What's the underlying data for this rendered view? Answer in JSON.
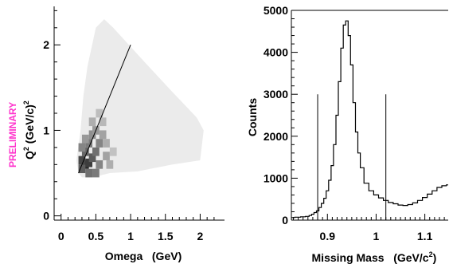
{
  "annotation": {
    "text": "PRELIMINARY",
    "color": "#ff33cc"
  },
  "chart_data": [
    {
      "type": "heatmap",
      "xlabel": "Omega   (GeV)",
      "ylabel": "Q",
      "ylabel_sup": "2",
      "ylabel_unit": "(GeV/c)",
      "ylabel_unit_sup": "2",
      "xlim": [
        -0.1,
        2.35
      ],
      "ylim": [
        -0.05,
        2.45
      ],
      "xticks": [
        0,
        0.5,
        1,
        1.5,
        2
      ],
      "xtick_labels": [
        "0",
        "0.5",
        "1",
        "1.5",
        "2"
      ],
      "yticks": [
        0,
        1,
        2
      ],
      "ytick_labels": [
        "0",
        "1",
        "2"
      ],
      "region_polygon": [
        [
          0.25,
          0.5
        ],
        [
          0.22,
          0.65
        ],
        [
          0.28,
          1.0
        ],
        [
          0.32,
          1.4
        ],
        [
          0.38,
          1.75
        ],
        [
          0.5,
          2.2
        ],
        [
          0.62,
          2.3
        ],
        [
          0.75,
          2.2
        ],
        [
          1.2,
          1.8
        ],
        [
          1.6,
          1.45
        ],
        [
          1.95,
          1.15
        ],
        [
          2.05,
          1.0
        ],
        [
          2.0,
          0.65
        ],
        [
          1.6,
          0.6
        ],
        [
          1.1,
          0.52
        ],
        [
          0.7,
          0.5
        ],
        [
          0.45,
          0.45
        ],
        [
          0.3,
          0.45
        ]
      ],
      "dense_cells": [
        {
          "x": 0.35,
          "y": 0.6,
          "v": 0.95
        },
        {
          "x": 0.4,
          "y": 0.62,
          "v": 0.85
        },
        {
          "x": 0.3,
          "y": 0.65,
          "v": 0.8
        },
        {
          "x": 0.45,
          "y": 0.68,
          "v": 0.7
        },
        {
          "x": 0.35,
          "y": 0.75,
          "v": 0.65
        },
        {
          "x": 0.5,
          "y": 0.75,
          "v": 0.6
        },
        {
          "x": 0.4,
          "y": 0.85,
          "v": 0.55
        },
        {
          "x": 0.55,
          "y": 0.85,
          "v": 0.5
        },
        {
          "x": 0.45,
          "y": 0.95,
          "v": 0.45
        },
        {
          "x": 0.5,
          "y": 1.0,
          "v": 0.4
        },
        {
          "x": 0.6,
          "y": 0.95,
          "v": 0.35
        },
        {
          "x": 0.3,
          "y": 0.55,
          "v": 0.7
        },
        {
          "x": 0.55,
          "y": 0.6,
          "v": 0.5
        },
        {
          "x": 0.65,
          "y": 0.7,
          "v": 0.35
        },
        {
          "x": 0.6,
          "y": 1.1,
          "v": 0.25
        },
        {
          "x": 0.7,
          "y": 0.6,
          "v": 0.3
        },
        {
          "x": 0.4,
          "y": 0.5,
          "v": 0.6
        },
        {
          "x": 0.5,
          "y": 0.5,
          "v": 0.55
        },
        {
          "x": 0.35,
          "y": 0.9,
          "v": 0.4
        },
        {
          "x": 0.45,
          "y": 1.1,
          "v": 0.3
        },
        {
          "x": 0.55,
          "y": 1.2,
          "v": 0.22
        },
        {
          "x": 0.65,
          "y": 0.85,
          "v": 0.3
        },
        {
          "x": 0.75,
          "y": 0.75,
          "v": 0.2
        },
        {
          "x": 0.3,
          "y": 0.8,
          "v": 0.5
        }
      ],
      "line": {
        "x": [
          0.25,
          1.0
        ],
        "y": [
          0.5,
          2.0
        ]
      }
    },
    {
      "type": "line",
      "xlabel": "Missing Mass   (GeV/c",
      "xlabel_sup": "2",
      "xlabel_close": ")",
      "ylabel": "Counts",
      "xlim": [
        0.826,
        1.148
      ],
      "ylim": [
        0,
        5000
      ],
      "xticks": [
        0.9,
        1.0,
        1.1
      ],
      "xtick_labels": [
        "0.9",
        "1",
        "1.1"
      ],
      "yticks": [
        0,
        1000,
        2000,
        3000,
        4000,
        5000
      ],
      "ytick_labels": [
        "0",
        "1000",
        "2000",
        "3000",
        "4000",
        "5000"
      ],
      "series": [
        {
          "x": [
            0.826,
            0.84,
            0.85,
            0.86,
            0.865,
            0.87,
            0.875,
            0.88,
            0.885,
            0.89,
            0.895,
            0.9,
            0.905,
            0.91,
            0.915,
            0.92,
            0.925,
            0.93,
            0.935,
            0.94,
            0.945,
            0.95,
            0.955,
            0.96,
            0.965,
            0.97,
            0.98,
            0.99,
            1.0,
            1.01,
            1.02,
            1.03,
            1.04,
            1.05,
            1.06,
            1.07,
            1.08,
            1.09,
            1.1,
            1.11,
            1.12,
            1.13,
            1.14,
            1.148
          ],
          "y": [
            60,
            70,
            80,
            90,
            110,
            140,
            180,
            220,
            300,
            400,
            520,
            700,
            950,
            1300,
            1800,
            2500,
            3300,
            4100,
            4650,
            4750,
            4400,
            3700,
            2800,
            2100,
            1600,
            1250,
            880,
            700,
            600,
            530,
            470,
            420,
            390,
            360,
            350,
            370,
            410,
            470,
            540,
            620,
            700,
            780,
            820,
            840
          ]
        }
      ],
      "cut_lines": [
        {
          "x": 0.88,
          "y_top": 3000
        },
        {
          "x": 1.02,
          "y_top": 3000
        }
      ]
    }
  ]
}
